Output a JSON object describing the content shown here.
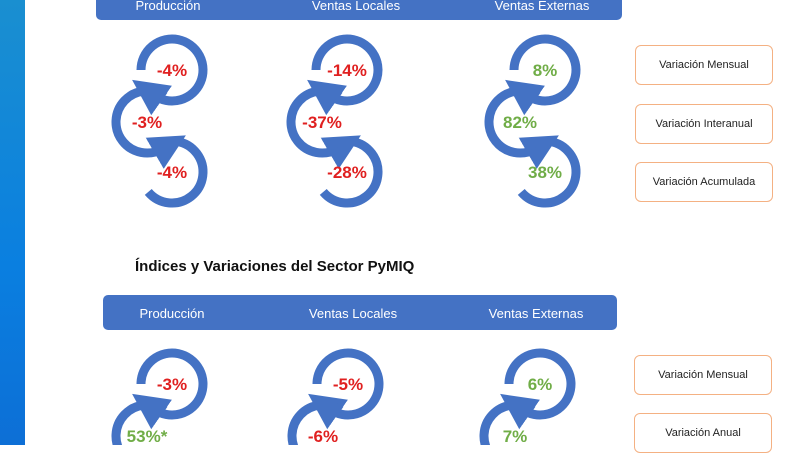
{
  "colors": {
    "negative": "#E02020",
    "positive": "#70AD47",
    "arrow": "#4472C4",
    "header": "#4472C4",
    "box_border": "#F4B183"
  },
  "top": {
    "headers": [
      "Producción",
      "Ventas Locales",
      "Ventas Externas"
    ],
    "columns": [
      {
        "values": [
          "-4%",
          "-3%",
          "-4%"
        ],
        "signs": [
          "neg",
          "neg",
          "neg"
        ]
      },
      {
        "values": [
          "-14%",
          "-37%",
          "-28%"
        ],
        "signs": [
          "neg",
          "neg",
          "neg"
        ]
      },
      {
        "values": [
          "8%",
          "82%",
          "38%"
        ],
        "signs": [
          "pos",
          "pos",
          "pos"
        ]
      }
    ],
    "legend": [
      "Variación Mensual",
      "Variación Interanual",
      "Variación Acumulada"
    ]
  },
  "section_title": "Índices y Variaciones del Sector PyMIQ",
  "bottom": {
    "headers": [
      "Producción",
      "Ventas Locales",
      "Ventas Externas"
    ],
    "columns": [
      {
        "values": [
          "-3%",
          "53%*"
        ],
        "signs": [
          "neg",
          "pos"
        ]
      },
      {
        "values": [
          "-5%",
          "-6%"
        ],
        "signs": [
          "neg",
          "neg"
        ]
      },
      {
        "values": [
          "6%",
          "7%"
        ],
        "signs": [
          "pos",
          "pos"
        ]
      }
    ],
    "legend": [
      "Variación Mensual",
      "Variación Anual"
    ]
  }
}
